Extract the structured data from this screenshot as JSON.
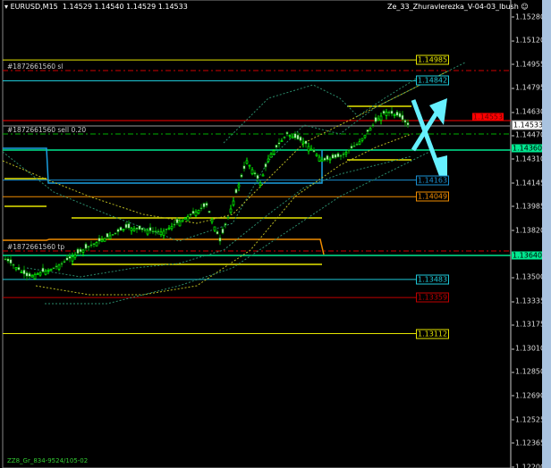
{
  "header": {
    "symbol": "EURUSD,M15",
    "ohlc": "1.14529 1.14540 1.14529 1.14533",
    "indicator": "Ze_33_Zhuravlerezka_V-04-03_Ibush",
    "smiley_icon": "smiley-icon"
  },
  "axis": {
    "ticks": [
      "1.15280",
      "1.15120",
      "1.14955",
      "1.14795",
      "1.14630",
      "1.14470",
      "1.14310",
      "1.14145",
      "1.13985",
      "1.13820",
      "1.13500",
      "1.13335",
      "1.13175",
      "1.13010",
      "1.12850",
      "1.12690",
      "1.12525",
      "1.12365",
      "1.12200"
    ],
    "bid_label": "1.14533",
    "red_label": "1.14553",
    "green_labels": [
      "1.14360",
      "1.13640"
    ]
  },
  "levels": [
    {
      "price": "1.14985",
      "color": "#e5e500"
    },
    {
      "price": "1.14842",
      "color": "#1ec8d8"
    },
    {
      "price": "1.14163",
      "color": "#1a8fd0"
    },
    {
      "price": "1.14049",
      "color": "#f08c00"
    },
    {
      "price": "1.13483",
      "color": "#1ec8d8"
    },
    {
      "price": "1.13359",
      "color": "#c00000"
    },
    {
      "price": "1.13112",
      "color": "#e5e500"
    }
  ],
  "orders": {
    "sl": "#1872661560 sl",
    "sell": "#1872661560 sell 0.20",
    "tp": "#1872661560 tp"
  },
  "footer": "ZZ8_Gr_834-9524/105-02",
  "colors": {
    "bull": "#00ff00",
    "bear": "#ffffff",
    "arrow": "#66f0ff",
    "bid": "#ffffff",
    "stop": "#ff0000",
    "entry": "#00e890"
  }
}
